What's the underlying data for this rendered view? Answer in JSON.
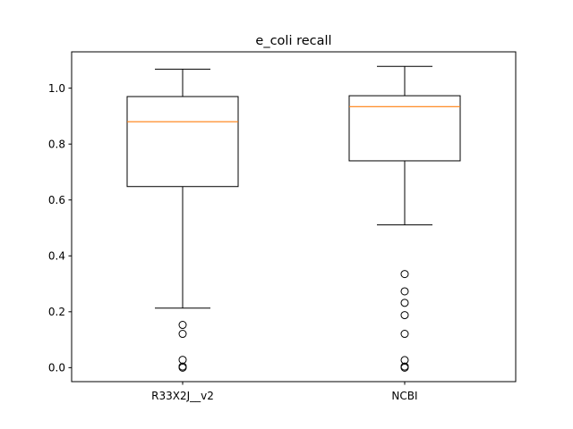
{
  "chart_data": {
    "type": "box",
    "title": "e_coli recall",
    "xlabel": "",
    "ylabel": "",
    "ylim": [
      -0.05,
      1.13
    ],
    "yticks": [
      0.0,
      0.2,
      0.4,
      0.6,
      0.8,
      1.0
    ],
    "ytick_labels": [
      "0.0",
      "0.2",
      "0.4",
      "0.6",
      "0.8",
      "1.0"
    ],
    "grid": false,
    "colors": {
      "median": "#ff7f0e",
      "box": "#000000"
    },
    "categories": [
      "R33X2J__v2",
      "NCBI"
    ],
    "boxes": [
      {
        "label": "R33X2J__v2",
        "whisker_low": 0.213,
        "q1": 0.648,
        "median": 0.88,
        "q3": 0.97,
        "whisker_high": 1.068,
        "outliers": [
          0.153,
          0.121,
          0.028,
          0.004,
          0.0
        ]
      },
      {
        "label": "NCBI",
        "whisker_low": 0.511,
        "q1": 0.74,
        "median": 0.934,
        "q3": 0.973,
        "whisker_high": 1.078,
        "outliers": [
          0.335,
          0.273,
          0.232,
          0.188,
          0.121,
          0.027,
          0.004,
          0.0
        ]
      }
    ]
  }
}
